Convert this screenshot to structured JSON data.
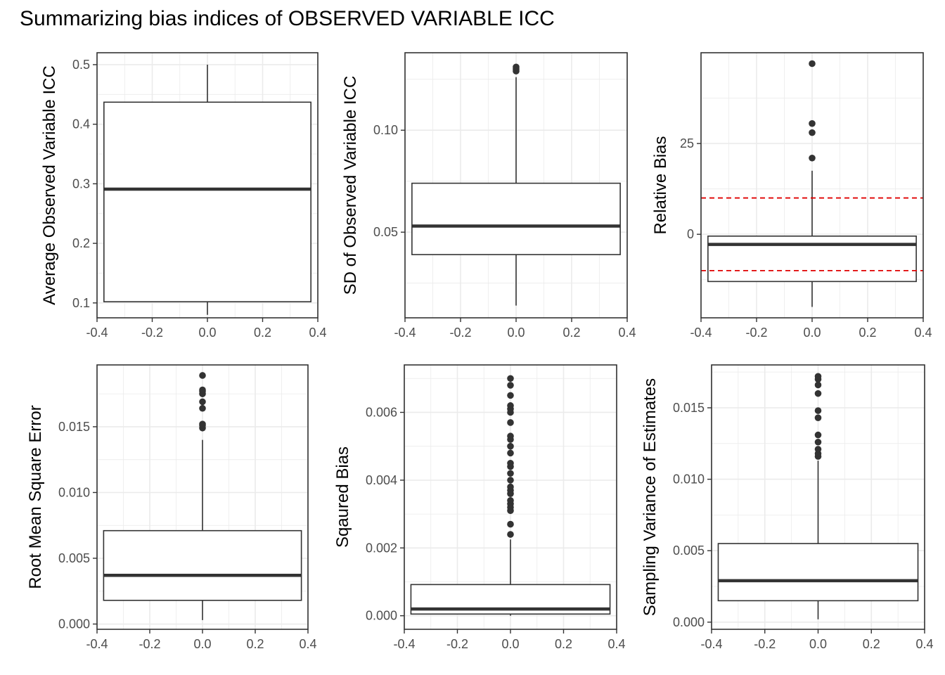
{
  "title": "Summarizing bias indices of OBSERVED VARIABLE ICC",
  "colors": {
    "box_line": "#333333",
    "grid": "#ebebeb",
    "frame": "#333333",
    "reference_line": "#e00000",
    "tick_text": "#4d4d4d"
  },
  "chart_data": [
    {
      "type": "boxplot",
      "ylabel": "Average Observed Variable ICC",
      "xlim": [
        -0.4,
        0.4
      ],
      "ylim": [
        0.075,
        0.52
      ],
      "xticks": [
        -0.4,
        -0.2,
        0.0,
        0.2,
        0.4
      ],
      "xtick_labels": [
        "-0.4",
        "-0.2",
        "0.0",
        "0.2",
        "0.4"
      ],
      "yticks": [
        0.1,
        0.2,
        0.3,
        0.4,
        0.5
      ],
      "ytick_labels": [
        "0.1",
        "0.2",
        "0.3",
        "0.4",
        "0.5"
      ],
      "box": {
        "x_min": -0.375,
        "x_max": 0.375,
        "x_center": 0.0,
        "lower_whisker": 0.08,
        "q1": 0.102,
        "median": 0.291,
        "q3": 0.437,
        "upper_whisker": 0.5
      },
      "outliers": [],
      "reference_lines": [],
      "grid": true
    },
    {
      "type": "boxplot",
      "ylabel": "SD of Observed Variable ICC",
      "xlim": [
        -0.4,
        0.4
      ],
      "ylim": [
        0.008,
        0.138
      ],
      "xticks": [
        -0.4,
        -0.2,
        0.0,
        0.2,
        0.4
      ],
      "xtick_labels": [
        "-0.4",
        "-0.2",
        "0.0",
        "0.2",
        "0.4"
      ],
      "yticks": [
        0.05,
        0.1
      ],
      "ytick_labels": [
        "0.05",
        "0.10"
      ],
      "box": {
        "x_min": -0.375,
        "x_max": 0.375,
        "x_center": 0.0,
        "lower_whisker": 0.014,
        "q1": 0.039,
        "median": 0.053,
        "q3": 0.074,
        "upper_whisker": 0.126
      },
      "outliers": [
        0.129,
        0.13,
        0.131
      ],
      "reference_lines": [],
      "grid": true
    },
    {
      "type": "boxplot",
      "ylabel": "Relative Bias",
      "xlim": [
        -0.4,
        0.4
      ],
      "ylim": [
        -23,
        50
      ],
      "xticks": [
        -0.4,
        -0.2,
        0.0,
        0.2,
        0.4
      ],
      "xtick_labels": [
        "-0.4",
        "-0.2",
        "0.0",
        "0.2",
        "0.4"
      ],
      "yticks": [
        0,
        25
      ],
      "ytick_labels": [
        "0",
        "25"
      ],
      "box": {
        "x_min": -0.375,
        "x_max": 0.375,
        "x_center": 0.0,
        "lower_whisker": -20,
        "q1": -13,
        "median": -2.8,
        "q3": -0.5,
        "upper_whisker": 17.5
      },
      "outliers": [
        21,
        28,
        30.5,
        47
      ],
      "reference_lines": [
        10,
        -10
      ],
      "grid": true
    },
    {
      "type": "boxplot",
      "ylabel": "Root Mean Square Error",
      "xlim": [
        -0.4,
        0.4
      ],
      "ylim": [
        -0.0004,
        0.0197
      ],
      "xticks": [
        -0.4,
        -0.2,
        0.0,
        0.2,
        0.4
      ],
      "xtick_labels": [
        "-0.4",
        "-0.2",
        "0.0",
        "0.2",
        "0.4"
      ],
      "yticks": [
        0.0,
        0.005,
        0.01,
        0.015
      ],
      "ytick_labels": [
        "0.000",
        "0.005",
        "0.010",
        "0.015"
      ],
      "box": {
        "x_min": -0.375,
        "x_max": 0.375,
        "x_center": 0.0,
        "lower_whisker": 0.0003,
        "q1": 0.0018,
        "median": 0.0037,
        "q3": 0.0071,
        "upper_whisker": 0.014
      },
      "outliers": [
        0.0149,
        0.0151,
        0.0152,
        0.0164,
        0.0169,
        0.0175,
        0.0177,
        0.0178,
        0.0189
      ],
      "reference_lines": [],
      "grid": true
    },
    {
      "type": "boxplot",
      "ylabel": "Sqaured Bias",
      "xlim": [
        -0.4,
        0.4
      ],
      "ylim": [
        -0.0004,
        0.0074
      ],
      "xticks": [
        -0.4,
        -0.2,
        0.0,
        0.2,
        0.4
      ],
      "xtick_labels": [
        "-0.4",
        "-0.2",
        "0.0",
        "0.2",
        "0.4"
      ],
      "yticks": [
        0.0,
        0.002,
        0.004,
        0.006
      ],
      "ytick_labels": [
        "0.000",
        "0.002",
        "0.004",
        "0.006"
      ],
      "box": {
        "x_min": -0.375,
        "x_max": 0.375,
        "x_center": 0.0,
        "lower_whisker": 0.0,
        "q1": 5e-05,
        "median": 0.0002,
        "q3": 0.00092,
        "upper_whisker": 0.00225
      },
      "outliers": [
        0.0024,
        0.0027,
        0.0031,
        0.0032,
        0.0033,
        0.0034,
        0.0036,
        0.0037,
        0.0038,
        0.004,
        0.0042,
        0.0044,
        0.0045,
        0.0048,
        0.005,
        0.0052,
        0.0053,
        0.0057,
        0.006,
        0.0061,
        0.0062,
        0.0065,
        0.0068,
        0.007
      ],
      "reference_lines": [],
      "grid": true
    },
    {
      "type": "boxplot",
      "ylabel": "Sampling Variance of Estimates",
      "xlim": [
        -0.4,
        0.4
      ],
      "ylim": [
        -0.0005,
        0.018
      ],
      "xticks": [
        -0.4,
        -0.2,
        0.0,
        0.2,
        0.4
      ],
      "xtick_labels": [
        "-0.4",
        "-0.2",
        "0.0",
        "0.2",
        "0.4"
      ],
      "yticks": [
        0.0,
        0.005,
        0.01,
        0.015
      ],
      "ytick_labels": [
        "0.000",
        "0.005",
        "0.010",
        "0.015"
      ],
      "box": {
        "x_min": -0.375,
        "x_max": 0.375,
        "x_center": 0.0,
        "lower_whisker": 0.0002,
        "q1": 0.0015,
        "median": 0.0029,
        "q3": 0.0055,
        "upper_whisker": 0.0113
      },
      "outliers": [
        0.0116,
        0.0118,
        0.0121,
        0.0126,
        0.0131,
        0.0143,
        0.0148,
        0.016,
        0.0166,
        0.017,
        0.0172
      ],
      "reference_lines": [],
      "grid": true
    }
  ]
}
